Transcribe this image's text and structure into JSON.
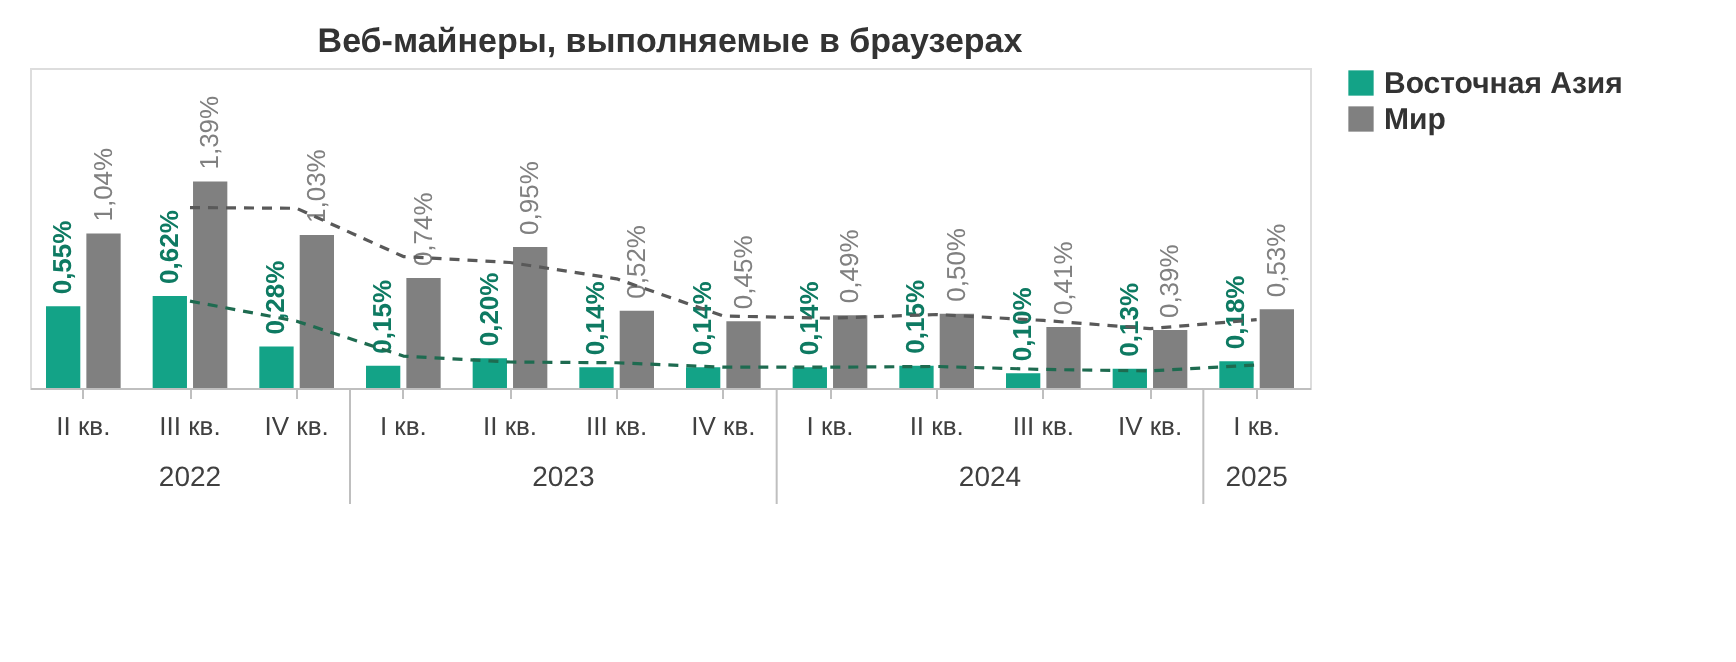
{
  "chart_data": {
    "type": "bar",
    "title": "Веб-майнеры, выполняемые в браузерах",
    "categories": [
      "II кв.",
      "III кв.",
      "IV кв.",
      "I кв.",
      "II кв.",
      "III кв.",
      "IV кв.",
      "I кв.",
      "II кв.",
      "III кв.",
      "IV кв.",
      "I кв."
    ],
    "series": [
      {
        "name": "Восточная Азия",
        "color": "#13a387",
        "values": [
          0.55,
          0.62,
          0.28,
          0.15,
          0.2,
          0.14,
          0.14,
          0.14,
          0.15,
          0.1,
          0.13,
          0.18
        ],
        "value_labels": [
          "0,55%",
          "0,62%",
          "0,28%",
          "0,15%",
          "0,20%",
          "0,14%",
          "0,14%",
          "0,14%",
          "0,15%",
          "0,10%",
          "0,13%",
          "0,18%"
        ]
      },
      {
        "name": "Мир",
        "color": "#808080",
        "values": [
          1.04,
          1.39,
          1.03,
          0.74,
          0.95,
          0.52,
          0.45,
          0.49,
          0.5,
          0.41,
          0.39,
          0.53
        ],
        "value_labels": [
          "1,04%",
          "1,39%",
          "1,03%",
          "0,74%",
          "0,95%",
          "0,52%",
          "0,45%",
          "0,49%",
          "0,50%",
          "0,41%",
          "0,39%",
          "0,53%"
        ]
      },
      {
        "type": "line",
        "color": "#1e6b50",
        "line_style": "dashed",
        "values": [
          null,
          0.585,
          0.45,
          0.215,
          0.175,
          0.17,
          0.14,
          0.14,
          0.145,
          0.125,
          0.115,
          0.155
        ]
      },
      {
        "type": "line",
        "color": "#595959",
        "line_style": "dashed",
        "values": [
          null,
          1.215,
          1.21,
          0.885,
          0.845,
          0.735,
          0.485,
          0.47,
          0.495,
          0.455,
          0.4,
          0.46
        ]
      }
    ],
    "annotations": [
      "2022",
      "2023",
      "2024",
      "2025"
    ],
    "legend": "right",
    "grid": false
  }
}
